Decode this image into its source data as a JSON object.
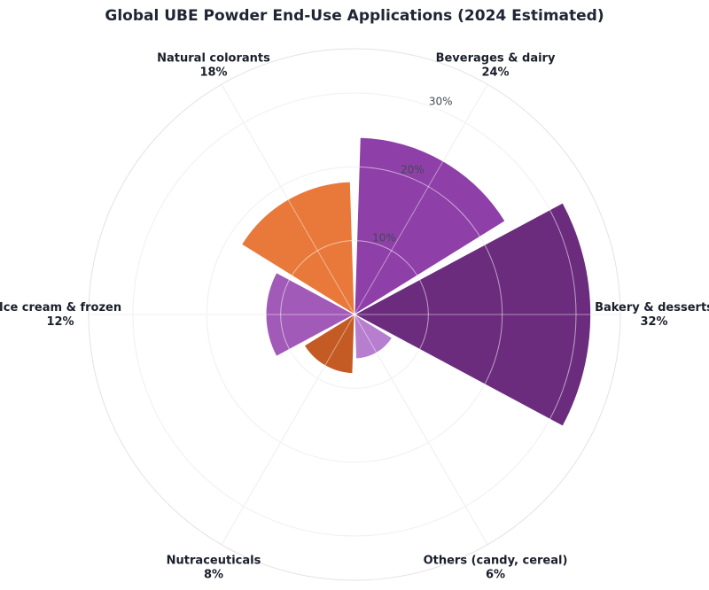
{
  "chart_data": {
    "type": "polar-bar",
    "title": "Global UBE Powder End-Use Applications (2024 Estimated)",
    "categories": [
      "Bakery & desserts",
      "Beverages & dairy",
      "Natural colorants",
      "Ice cream & frozen",
      "Nutraceuticals",
      "Others (candy, cereal)"
    ],
    "values": [
      32,
      24,
      18,
      12,
      8,
      6
    ],
    "value_labels": [
      "32%",
      "24%",
      "18%",
      "12%",
      "8%",
      "6%"
    ],
    "colors": [
      "#6b2c7e",
      "#8e3fa8",
      "#e8793a",
      "#a15ab8",
      "#c45a24",
      "#b77ecf"
    ],
    "r_ticks": [
      10,
      20,
      30
    ],
    "r_tick_labels": [
      "10%",
      "20%",
      "30%"
    ],
    "r_max": 36,
    "grid": true
  }
}
